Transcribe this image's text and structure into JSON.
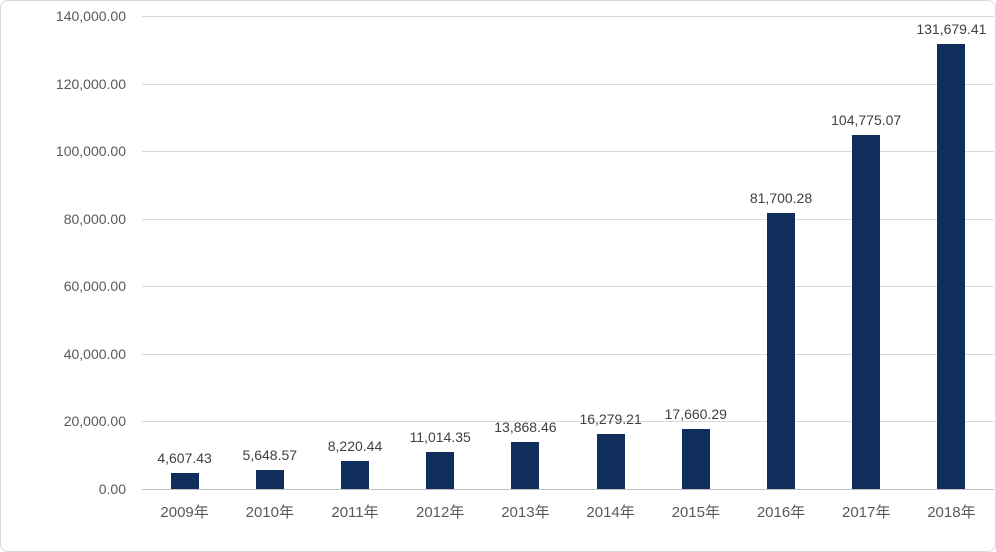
{
  "chart_data": {
    "type": "bar",
    "title": "",
    "xlabel": "",
    "ylabel": "",
    "categories": [
      "2009年",
      "2010年",
      "2011年",
      "2012年",
      "2013年",
      "2014年",
      "2015年",
      "2016年",
      "2017年",
      "2018年"
    ],
    "values": [
      4607.43,
      5648.57,
      8220.44,
      11014.35,
      13868.46,
      16279.21,
      17660.29,
      81700.28,
      104775.07,
      131679.41
    ],
    "value_labels": [
      "4,607.43",
      "5,648.57",
      "8,220.44",
      "11,014.35",
      "13,868.46",
      "16,279.21",
      "17,660.29",
      "81,700.28",
      "104,775.07",
      "131,679.41"
    ],
    "ylim": [
      0,
      140000
    ],
    "y_tick_step": 20000,
    "y_ticks": [
      {
        "value": 140000,
        "label": "140,000.00"
      },
      {
        "value": 120000,
        "label": "120,000.00"
      },
      {
        "value": 100000,
        "label": "100,000.00"
      },
      {
        "value": 80000,
        "label": "80,000.00"
      },
      {
        "value": 60000,
        "label": "60,000.00"
      },
      {
        "value": 40000,
        "label": "40,000.00"
      },
      {
        "value": 20000,
        "label": "20,000.00"
      },
      {
        "value": 0,
        "label": "0.00"
      }
    ],
    "grid": true,
    "legend_position": "none",
    "colors": {
      "bar": "#0f2e5c",
      "gridline": "#d9d9d9",
      "axis_line": "#bfbfbf",
      "axis_text": "#595959",
      "data_label_text": "#404040",
      "chart_border": "#d9d9d9",
      "background": "#ffffff"
    }
  }
}
